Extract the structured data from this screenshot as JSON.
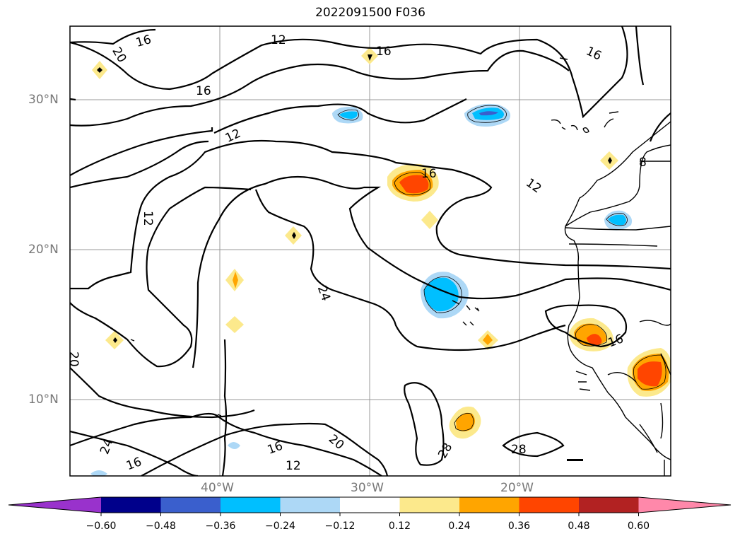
{
  "title": "2022091500 F036",
  "lat_labels": [
    "30°N",
    "20°N",
    "10°N"
  ],
  "lon_labels": [
    "40°W",
    "30°W",
    "20°W"
  ],
  "contour_labels": {
    "c16a": "16",
    "c20a": "20",
    "c12a": "12",
    "c16b": "16",
    "c16c": "16",
    "c16d": "16",
    "c12b": "12",
    "c12c": "12",
    "c16e": "16",
    "c12d": "12",
    "c24a": "24",
    "c20b": "20",
    "c24b": "24",
    "c16f": "16",
    "c16g": "16",
    "c20c": "20",
    "c12e": "12",
    "c28a": "28",
    "c28b": "28",
    "c16h": "16",
    "c8a": "8"
  },
  "colorbar": {
    "ticks": [
      "−0.60",
      "−0.48",
      "−0.36",
      "−0.24",
      "−0.12",
      "0.12",
      "0.24",
      "0.36",
      "0.48",
      "0.60"
    ],
    "colors": [
      "#9932cc",
      "#00008b",
      "#3a5fcd",
      "#00bfff",
      "#add8f6",
      "#ffffff",
      "#fce98c",
      "#ffa500",
      "#ff4500",
      "#b22222",
      "#ff88aa"
    ]
  }
}
